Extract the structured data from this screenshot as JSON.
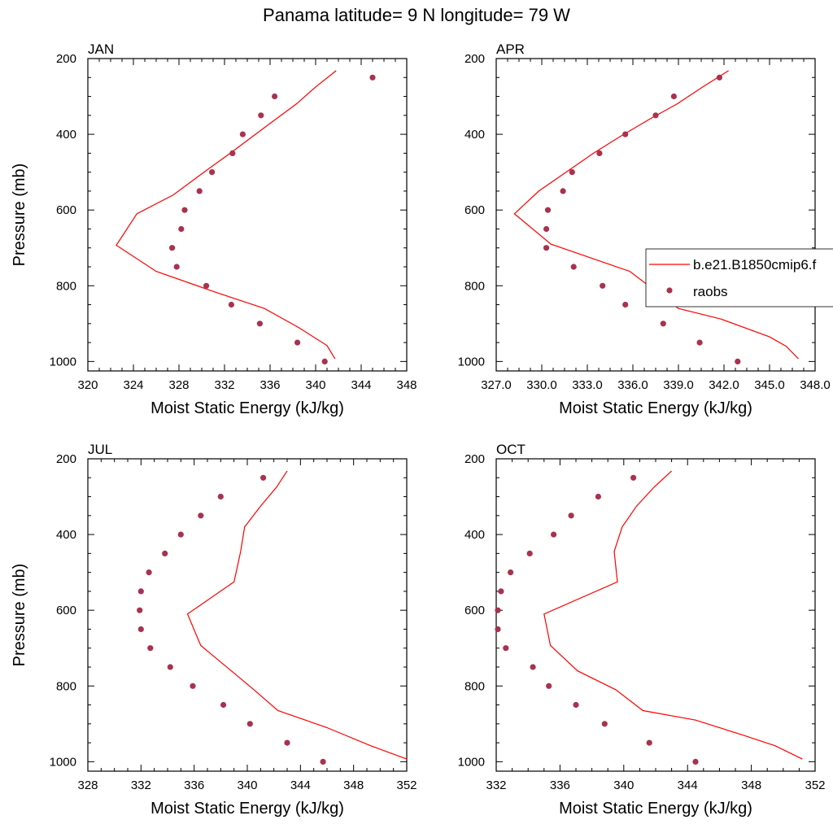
{
  "title": "Panama  latitude= 9 N longitude= 79 W",
  "chart_data": [
    {
      "type": "line",
      "panel": "JAN",
      "xlabel": "Moist Static Energy (kJ/kg)",
      "ylabel": "Pressure (mb)",
      "xlim": [
        320,
        348
      ],
      "xticks": [
        320,
        324,
        328,
        332,
        336,
        340,
        344,
        348
      ],
      "xtick_labels": [
        "320",
        "324",
        "328",
        "332",
        "336",
        "340",
        "344",
        "348"
      ],
      "ylim": [
        200,
        1025
      ],
      "yticks": [
        200,
        400,
        600,
        800,
        1000
      ],
      "ytick_labels": [
        "200",
        "400",
        "600",
        "800",
        "1000"
      ],
      "y_inverted": true,
      "series": [
        {
          "name": "b.e21.B1850cmip6.f",
          "style": "line",
          "color": "#ff0000",
          "points": [
            [
              341.8,
              232
            ],
            [
              340.0,
              275
            ],
            [
              338.3,
              320
            ],
            [
              336.5,
              360
            ],
            [
              334.5,
              405
            ],
            [
              332.5,
              450
            ],
            [
              330.2,
              500
            ],
            [
              327.5,
              560
            ],
            [
              324.3,
              610
            ],
            [
              322.5,
              693
            ],
            [
              326.0,
              762
            ],
            [
              331.5,
              820
            ],
            [
              335.5,
              860
            ],
            [
              338.5,
              910
            ],
            [
              341.0,
              958
            ],
            [
              341.7,
              993
            ]
          ]
        },
        {
          "name": "raobs",
          "style": "points",
          "color": "#a8324f",
          "points": [
            [
              345.0,
              250
            ],
            [
              336.4,
              300
            ],
            [
              335.2,
              350
            ],
            [
              333.6,
              400
            ],
            [
              332.7,
              450
            ],
            [
              330.9,
              500
            ],
            [
              329.8,
              550
            ],
            [
              328.5,
              600
            ],
            [
              328.2,
              650
            ],
            [
              327.4,
              700
            ],
            [
              327.8,
              750
            ],
            [
              330.4,
              800
            ],
            [
              332.6,
              850
            ],
            [
              335.1,
              900
            ],
            [
              338.4,
              950
            ],
            [
              340.8,
              1000
            ]
          ]
        }
      ]
    },
    {
      "type": "line",
      "panel": "APR",
      "xlabel": "Moist Static Energy (kJ/kg)",
      "ylabel": "",
      "xlim": [
        327,
        348
      ],
      "xticks": [
        327,
        330,
        333,
        336,
        339,
        342,
        345,
        348
      ],
      "xtick_labels": [
        "327.0",
        "330.0",
        "333.0",
        "336.0",
        "339.0",
        "342.0",
        "345.0",
        "348.0"
      ],
      "ylim": [
        200,
        1025
      ],
      "yticks": [
        200,
        400,
        600,
        800,
        1000
      ],
      "ytick_labels": [
        "200",
        "400",
        "600",
        "800",
        "1000"
      ],
      "y_inverted": true,
      "series": [
        {
          "name": "b.e21.B1850cmip6.f",
          "style": "line",
          "color": "#ff0000",
          "points": [
            [
              342.3,
              232
            ],
            [
              340.6,
              275
            ],
            [
              338.9,
              320
            ],
            [
              337.1,
              360
            ],
            [
              335.2,
              405
            ],
            [
              333.4,
              450
            ],
            [
              331.6,
              500
            ],
            [
              329.8,
              550
            ],
            [
              328.2,
              610
            ],
            [
              330.6,
              690
            ],
            [
              335.8,
              762
            ],
            [
              339.0,
              860
            ],
            [
              341.8,
              888
            ],
            [
              345.0,
              935
            ],
            [
              346.1,
              960
            ],
            [
              346.9,
              993
            ]
          ]
        },
        {
          "name": "raobs",
          "style": "points",
          "color": "#a8324f",
          "points": [
            [
              341.7,
              250
            ],
            [
              338.7,
              300
            ],
            [
              337.5,
              350
            ],
            [
              335.5,
              400
            ],
            [
              333.8,
              450
            ],
            [
              332.0,
              500
            ],
            [
              331.4,
              550
            ],
            [
              330.4,
              600
            ],
            [
              330.3,
              650
            ],
            [
              330.3,
              700
            ],
            [
              332.1,
              750
            ],
            [
              334.0,
              800
            ],
            [
              335.5,
              850
            ],
            [
              338.0,
              900
            ],
            [
              340.4,
              950
            ],
            [
              342.9,
              1000
            ]
          ]
        }
      ]
    },
    {
      "type": "line",
      "panel": "JUL",
      "xlabel": "Moist Static Energy (kJ/kg)",
      "ylabel": "Pressure (mb)",
      "xlim": [
        328,
        352
      ],
      "xticks": [
        328,
        332,
        336,
        340,
        344,
        348,
        352
      ],
      "xtick_labels": [
        "328",
        "332",
        "336",
        "340",
        "344",
        "348",
        "352"
      ],
      "ylim": [
        200,
        1025
      ],
      "yticks": [
        200,
        400,
        600,
        800,
        1000
      ],
      "ytick_labels": [
        "200",
        "400",
        "600",
        "800",
        "1000"
      ],
      "y_inverted": true,
      "series": [
        {
          "name": "b.e21.B1850cmip6.f",
          "style": "line",
          "color": "#ff0000",
          "points": [
            [
              343.0,
              232
            ],
            [
              342.2,
              275
            ],
            [
              341.0,
              325
            ],
            [
              339.8,
              380
            ],
            [
              339.5,
              445
            ],
            [
              339.0,
              525
            ],
            [
              335.5,
              610
            ],
            [
              336.5,
              693
            ],
            [
              338.8,
              760
            ],
            [
              340.5,
              810
            ],
            [
              342.3,
              865
            ],
            [
              346.0,
              910
            ],
            [
              349.3,
              958
            ],
            [
              352.0,
              993
            ]
          ]
        },
        {
          "name": "raobs",
          "style": "points",
          "color": "#a8324f",
          "points": [
            [
              341.2,
              250
            ],
            [
              338.0,
              300
            ],
            [
              336.5,
              350
            ],
            [
              335.0,
              400
            ],
            [
              333.8,
              450
            ],
            [
              332.6,
              500
            ],
            [
              332.0,
              550
            ],
            [
              331.9,
              600
            ],
            [
              332.0,
              650
            ],
            [
              332.7,
              700
            ],
            [
              334.2,
              750
            ],
            [
              335.9,
              800
            ],
            [
              338.2,
              850
            ],
            [
              340.2,
              900
            ],
            [
              343.0,
              950
            ],
            [
              345.7,
              1000
            ]
          ]
        }
      ]
    },
    {
      "type": "line",
      "panel": "OCT",
      "xlabel": "Moist Static Energy (kJ/kg)",
      "ylabel": "",
      "xlim": [
        332,
        352
      ],
      "xticks": [
        332,
        336,
        340,
        344,
        348,
        352
      ],
      "xtick_labels": [
        "332",
        "336",
        "340",
        "344",
        "348",
        "352"
      ],
      "ylim": [
        200,
        1025
      ],
      "yticks": [
        200,
        400,
        600,
        800,
        1000
      ],
      "ytick_labels": [
        "200",
        "400",
        "600",
        "800",
        "1000"
      ],
      "y_inverted": true,
      "series": [
        {
          "name": "b.e21.B1850cmip6.f",
          "style": "line",
          "color": "#ff0000",
          "points": [
            [
              343.0,
              232
            ],
            [
              341.9,
              275
            ],
            [
              340.8,
              325
            ],
            [
              339.9,
              380
            ],
            [
              339.4,
              445
            ],
            [
              339.6,
              525
            ],
            [
              335.0,
              610
            ],
            [
              335.4,
              693
            ],
            [
              337.1,
              760
            ],
            [
              339.5,
              810
            ],
            [
              341.2,
              865
            ],
            [
              344.5,
              890
            ],
            [
              347.5,
              930
            ],
            [
              349.5,
              958
            ],
            [
              351.2,
              993
            ]
          ]
        },
        {
          "name": "raobs",
          "style": "points",
          "color": "#a8324f",
          "points": [
            [
              340.6,
              250
            ],
            [
              338.4,
              300
            ],
            [
              336.7,
              350
            ],
            [
              335.6,
              400
            ],
            [
              334.1,
              450
            ],
            [
              332.9,
              500
            ],
            [
              332.3,
              550
            ],
            [
              332.1,
              600
            ],
            [
              332.1,
              650
            ],
            [
              332.6,
              700
            ],
            [
              334.3,
              750
            ],
            [
              335.3,
              800
            ],
            [
              337.0,
              850
            ],
            [
              338.8,
              900
            ],
            [
              341.6,
              950
            ],
            [
              344.5,
              1000
            ]
          ]
        }
      ]
    }
  ],
  "legend": {
    "entries": [
      {
        "label": "b.e21.B1850cmip6.f",
        "symbol": "line",
        "color": "#ff0000"
      },
      {
        "label": "raobs",
        "symbol": "dot",
        "color": "#a8324f"
      }
    ]
  }
}
